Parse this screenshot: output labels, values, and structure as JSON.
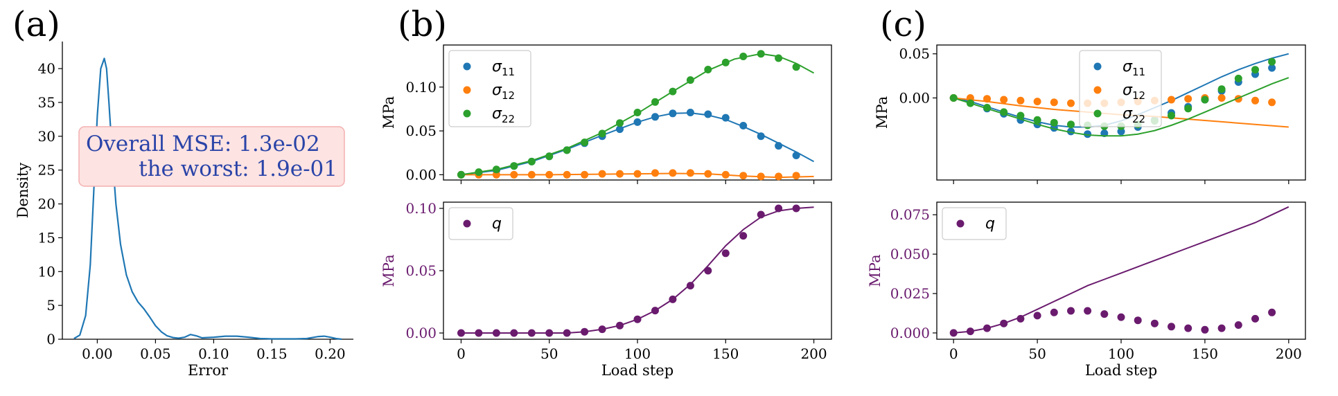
{
  "colors": {
    "blue": "#1f77b4",
    "orange": "#ff7f0e",
    "green": "#2ca02c",
    "purple": "#6a1b6e",
    "kde": "#2c6fa6",
    "box_fill": "#fde3e2",
    "box_edge": "#f4b0b0",
    "box_text": "#2a44a8"
  },
  "chart_data": [
    {
      "id": "a",
      "panel_label": "(a)",
      "type": "line",
      "xlabel": "Error",
      "ylabel": "Density",
      "xlim": [
        -0.03,
        0.22
      ],
      "ylim": [
        0,
        44
      ],
      "xticks": [
        0.0,
        0.05,
        0.1,
        0.15,
        0.2
      ],
      "xtick_labels": [
        "0.00",
        "0.05",
        "0.10",
        "0.15",
        "0.20"
      ],
      "yticks": [
        0,
        5,
        10,
        15,
        20,
        25,
        30,
        35,
        40
      ],
      "ytick_labels": [
        "0",
        "5",
        "10",
        "15",
        "20",
        "25",
        "30",
        "35",
        "40"
      ],
      "series": [
        {
          "style": "line",
          "color": "blue",
          "x": [
            -0.02,
            -0.015,
            -0.01,
            -0.006,
            -0.003,
            0.0,
            0.003,
            0.006,
            0.008,
            0.01,
            0.013,
            0.016,
            0.02,
            0.025,
            0.03,
            0.035,
            0.04,
            0.045,
            0.05,
            0.055,
            0.06,
            0.065,
            0.07,
            0.075,
            0.08,
            0.085,
            0.09,
            0.1,
            0.11,
            0.12,
            0.13,
            0.14,
            0.15,
            0.16,
            0.17,
            0.18,
            0.19,
            0.195,
            0.2,
            0.205,
            0.21
          ],
          "y": [
            0.1,
            0.6,
            3.5,
            11,
            22,
            33,
            40,
            41.5,
            40,
            35,
            27,
            20,
            14,
            9.5,
            7,
            5.5,
            4.5,
            3.3,
            2,
            1.1,
            0.5,
            0.25,
            0.15,
            0.3,
            0.7,
            0.5,
            0.2,
            0.3,
            0.45,
            0.45,
            0.3,
            0.1,
            0.05,
            0.05,
            0.05,
            0.1,
            0.4,
            0.45,
            0.3,
            0.1,
            0.0
          ]
        }
      ],
      "annotation": [
        "Overall MSE: 1.3e-02",
        "the worst: 1.9e-01"
      ]
    },
    {
      "id": "b_top",
      "panel_label": "(b)",
      "type": "scatter",
      "ylabel": "MPa",
      "xlim": [
        -10,
        210
      ],
      "ylim": [
        -0.006,
        0.148
      ],
      "xticks": [
        0,
        50,
        100,
        150,
        200
      ],
      "yticks": [
        0.0,
        0.05,
        0.1
      ],
      "ytick_labels": [
        "0.00",
        "0.05",
        "0.10"
      ],
      "legend": [
        "σ11",
        "σ12",
        "σ22"
      ],
      "legend_position": "top-left",
      "series": [
        {
          "name": "σ11",
          "color": "blue",
          "points_x": [
            0,
            10,
            20,
            30,
            40,
            50,
            60,
            70,
            80,
            90,
            100,
            110,
            120,
            130,
            140,
            150,
            160,
            170,
            180,
            190
          ],
          "points_y": [
            0.0,
            0.002,
            0.005,
            0.01,
            0.015,
            0.021,
            0.028,
            0.036,
            0.044,
            0.052,
            0.06,
            0.066,
            0.07,
            0.071,
            0.069,
            0.065,
            0.056,
            0.044,
            0.033,
            0.022
          ],
          "line_x": [
            0,
            20,
            40,
            60,
            80,
            100,
            110,
            120,
            130,
            140,
            150,
            160,
            170,
            180,
            190,
            200
          ],
          "line_y": [
            0.0,
            0.005,
            0.015,
            0.029,
            0.045,
            0.06,
            0.066,
            0.07,
            0.0705,
            0.068,
            0.063,
            0.055,
            0.046,
            0.036,
            0.026,
            0.015
          ]
        },
        {
          "name": "σ12",
          "color": "orange",
          "points_x": [
            0,
            10,
            20,
            30,
            40,
            50,
            60,
            70,
            80,
            90,
            100,
            110,
            120,
            130,
            140,
            150,
            160,
            170,
            180,
            190
          ],
          "points_y": [
            0.0,
            0.0,
            0.0,
            0.0,
            0.0,
            0.0,
            0.0,
            0.0,
            0.001,
            0.001,
            0.001,
            0.002,
            0.002,
            0.002,
            0.001,
            0.0,
            -0.001,
            -0.002,
            -0.002,
            -0.001
          ],
          "line_x": [
            0,
            50,
            100,
            120,
            140,
            160,
            180,
            200
          ],
          "line_y": [
            0.0,
            0.0,
            0.001,
            0.0015,
            0.001,
            -0.0015,
            -0.003,
            -0.002
          ]
        },
        {
          "name": "σ22",
          "color": "green",
          "points_x": [
            0,
            10,
            20,
            30,
            40,
            50,
            60,
            70,
            80,
            90,
            100,
            110,
            120,
            130,
            140,
            150,
            160,
            170,
            180,
            190
          ],
          "points_y": [
            0.0,
            0.003,
            0.006,
            0.01,
            0.015,
            0.021,
            0.028,
            0.037,
            0.047,
            0.059,
            0.071,
            0.083,
            0.095,
            0.108,
            0.12,
            0.128,
            0.135,
            0.138,
            0.133,
            0.123
          ],
          "line_x": [
            0,
            20,
            40,
            60,
            80,
            100,
            120,
            140,
            155,
            170,
            180,
            190,
            200
          ],
          "line_y": [
            0.0,
            0.006,
            0.016,
            0.03,
            0.048,
            0.07,
            0.095,
            0.119,
            0.132,
            0.138,
            0.135,
            0.127,
            0.116
          ]
        }
      ]
    },
    {
      "id": "b_bottom",
      "type": "scatter",
      "xlabel": "Load step",
      "ylabel": "MPa",
      "xlim": [
        -10,
        210
      ],
      "ylim": [
        -0.005,
        0.105
      ],
      "xticks": [
        0,
        50,
        100,
        150,
        200
      ],
      "xtick_labels": [
        "0",
        "50",
        "100",
        "150",
        "200"
      ],
      "yticks": [
        0.0,
        0.05,
        0.1
      ],
      "ytick_labels": [
        "0.00",
        "0.05",
        "0.10"
      ],
      "legend": [
        "q"
      ],
      "legend_position": "top-left",
      "series": [
        {
          "name": "q",
          "color": "purple",
          "points_x": [
            0,
            10,
            20,
            30,
            40,
            50,
            60,
            70,
            80,
            90,
            100,
            110,
            120,
            130,
            140,
            150,
            160,
            170,
            180,
            190
          ],
          "points_y": [
            0.0,
            0.0,
            0.0,
            0.0,
            0.0,
            0.0,
            0.0,
            0.001,
            0.003,
            0.006,
            0.011,
            0.018,
            0.027,
            0.038,
            0.05,
            0.064,
            0.078,
            0.095,
            0.1,
            0.1
          ],
          "line_x": [
            0,
            60,
            70,
            80,
            90,
            100,
            110,
            120,
            130,
            140,
            150,
            160,
            170,
            180,
            190,
            200
          ],
          "line_y": [
            0.0,
            0.0,
            0.001,
            0.003,
            0.006,
            0.011,
            0.018,
            0.027,
            0.039,
            0.054,
            0.07,
            0.083,
            0.093,
            0.098,
            0.1,
            0.101
          ]
        }
      ]
    },
    {
      "id": "c_top",
      "panel_label": "(c)",
      "type": "scatter",
      "ylabel": "MPa",
      "xlim": [
        -10,
        210
      ],
      "ylim": [
        -0.093,
        0.06
      ],
      "xticks": [
        0,
        50,
        100,
        150,
        200
      ],
      "yticks": [
        0.0,
        0.05
      ],
      "ytick_labels": [
        "0.00",
        "0.05"
      ],
      "legend": [
        "σ11",
        "σ12",
        "σ22"
      ],
      "legend_position": "top-center",
      "series": [
        {
          "name": "σ11",
          "color": "blue",
          "points_x": [
            0,
            10,
            20,
            30,
            40,
            50,
            60,
            70,
            80,
            90,
            100,
            110,
            120,
            130,
            140,
            150,
            160,
            170,
            180,
            190
          ],
          "points_y": [
            0.0,
            -0.005,
            -0.012,
            -0.018,
            -0.025,
            -0.03,
            -0.034,
            -0.038,
            -0.041,
            -0.04,
            -0.038,
            -0.033,
            -0.025,
            -0.017,
            -0.01,
            -0.002,
            0.008,
            0.018,
            0.027,
            0.034
          ],
          "line_x": [
            0,
            10,
            20,
            30,
            40,
            50,
            60,
            70,
            80,
            90,
            100,
            110,
            120,
            130,
            140,
            150,
            160,
            170,
            180,
            190,
            200
          ],
          "line_y": [
            0.0,
            -0.004,
            -0.01,
            -0.016,
            -0.022,
            -0.027,
            -0.031,
            -0.033,
            -0.033,
            -0.031,
            -0.026,
            -0.019,
            -0.011,
            -0.003,
            0.006,
            0.015,
            0.024,
            0.032,
            0.039,
            0.045,
            0.05
          ]
        },
        {
          "name": "σ12",
          "color": "orange",
          "points_x": [
            0,
            10,
            20,
            30,
            40,
            50,
            60,
            70,
            80,
            90,
            100,
            110,
            120,
            130,
            140,
            150,
            160,
            170,
            180,
            190
          ],
          "points_y": [
            0.0,
            0.0,
            -0.001,
            -0.002,
            -0.003,
            -0.004,
            -0.005,
            -0.006,
            -0.006,
            -0.006,
            -0.005,
            -0.004,
            -0.003,
            -0.002,
            -0.001,
            0.0,
            0.0,
            -0.001,
            -0.003,
            -0.005
          ],
          "line_x": [
            0,
            20,
            40,
            60,
            80,
            100,
            120,
            140,
            160,
            180,
            200
          ],
          "line_y": [
            0.0,
            -0.004,
            -0.009,
            -0.013,
            -0.016,
            -0.019,
            -0.021,
            -0.024,
            -0.027,
            -0.03,
            -0.033
          ]
        },
        {
          "name": "σ22",
          "color": "green",
          "points_x": [
            0,
            10,
            20,
            30,
            40,
            50,
            60,
            70,
            80,
            90,
            100,
            110,
            120,
            130,
            140,
            150,
            160,
            170,
            180,
            190
          ],
          "points_y": [
            0.0,
            -0.006,
            -0.011,
            -0.016,
            -0.02,
            -0.025,
            -0.028,
            -0.03,
            -0.031,
            -0.032,
            -0.032,
            -0.03,
            -0.026,
            -0.02,
            -0.012,
            -0.002,
            0.01,
            0.022,
            0.032,
            0.041
          ],
          "line_x": [
            0,
            10,
            20,
            30,
            40,
            50,
            60,
            70,
            80,
            90,
            100,
            110,
            120,
            130,
            140,
            150,
            160,
            170,
            180,
            190,
            200
          ],
          "line_y": [
            0.0,
            -0.006,
            -0.012,
            -0.018,
            -0.024,
            -0.03,
            -0.035,
            -0.039,
            -0.042,
            -0.043,
            -0.043,
            -0.041,
            -0.037,
            -0.031,
            -0.024,
            -0.016,
            -0.008,
            0.0,
            0.008,
            0.016,
            0.023
          ]
        }
      ]
    },
    {
      "id": "c_bottom",
      "type": "scatter",
      "xlabel": "Load step",
      "ylabel": "MPa",
      "xlim": [
        -10,
        210
      ],
      "ylim": [
        -0.004,
        0.083
      ],
      "xticks": [
        0,
        50,
        100,
        150,
        200
      ],
      "xtick_labels": [
        "0",
        "50",
        "100",
        "150",
        "200"
      ],
      "yticks": [
        0.0,
        0.025,
        0.05,
        0.075
      ],
      "ytick_labels": [
        "0.000",
        "0.025",
        "0.050",
        "0.075"
      ],
      "legend": [
        "q"
      ],
      "legend_position": "top-left",
      "series": [
        {
          "name": "q",
          "color": "purple",
          "points_x": [
            0,
            10,
            20,
            30,
            40,
            50,
            60,
            70,
            80,
            90,
            100,
            110,
            120,
            130,
            140,
            150,
            160,
            170,
            180,
            190
          ],
          "points_y": [
            0.0,
            0.001,
            0.003,
            0.006,
            0.009,
            0.011,
            0.013,
            0.014,
            0.014,
            0.012,
            0.01,
            0.008,
            0.006,
            0.004,
            0.003,
            0.002,
            0.003,
            0.005,
            0.009,
            0.013
          ],
          "line_x": [
            0,
            10,
            20,
            30,
            40,
            50,
            60,
            70,
            80,
            90,
            100,
            110,
            120,
            130,
            140,
            150,
            160,
            170,
            180,
            190,
            200
          ],
          "line_y": [
            0.0,
            0.001,
            0.003,
            0.006,
            0.01,
            0.015,
            0.02,
            0.025,
            0.03,
            0.034,
            0.038,
            0.042,
            0.046,
            0.05,
            0.054,
            0.058,
            0.062,
            0.066,
            0.07,
            0.075,
            0.08
          ]
        }
      ]
    }
  ]
}
